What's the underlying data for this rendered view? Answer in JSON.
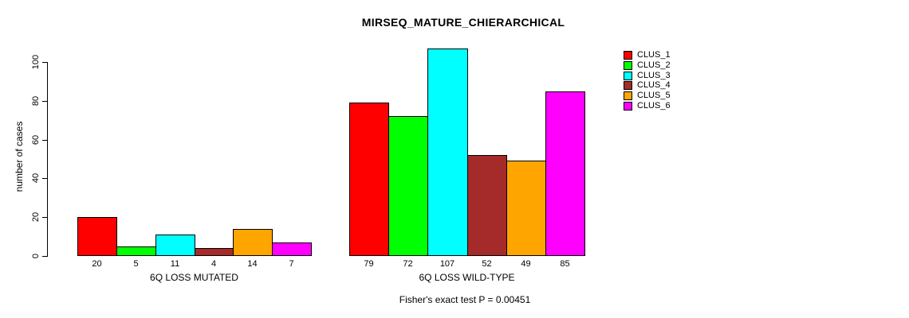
{
  "chart_data": {
    "type": "bar",
    "title": "MIRSEQ_MATURE_CHIERARCHICAL",
    "ylabel": "number of cases",
    "ylim": [
      0,
      107
    ],
    "yticks": [
      0,
      20,
      40,
      60,
      80,
      100
    ],
    "grid": false,
    "legend_position": "top-right",
    "series_names": [
      "CLUS_1",
      "CLUS_2",
      "CLUS_3",
      "CLUS_4",
      "CLUS_5",
      "CLUS_6"
    ],
    "colors": [
      "#FF0000",
      "#00FF00",
      "#00FFFF",
      "#A52A2A",
      "#FFA500",
      "#FF00FF"
    ],
    "groups": [
      {
        "label": "6Q LOSS MUTATED",
        "values": [
          20,
          5,
          11,
          4,
          14,
          7
        ]
      },
      {
        "label": "6Q LOSS WILD-TYPE",
        "values": [
          79,
          72,
          107,
          52,
          49,
          85
        ]
      }
    ],
    "annotation": "Fisher's exact test P = 0.00451"
  }
}
